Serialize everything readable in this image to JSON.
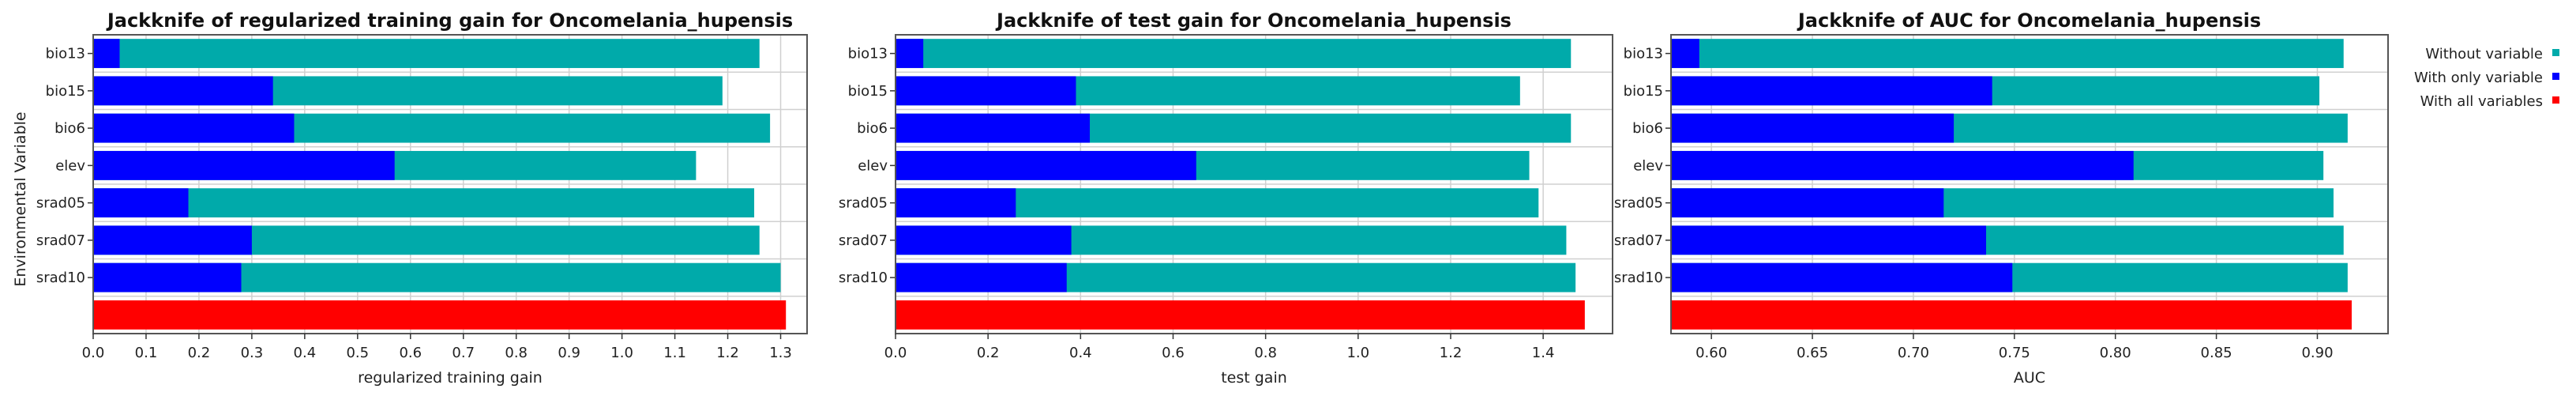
{
  "ylabel": "Environmental Variable",
  "colors": {
    "without": "#00aaaa",
    "only": "#0000ff",
    "all": "#ff0000",
    "grid": "#d0d0d0"
  },
  "legend": [
    {
      "label": "Without variable",
      "color": "#00aaaa"
    },
    {
      "label": "With only variable",
      "color": "#0000ff"
    },
    {
      "label": "With all variables",
      "color": "#ff0000"
    }
  ],
  "chart_data": [
    {
      "type": "bar",
      "orientation": "horizontal",
      "title": "Jackknife of regularized training gain for Oncomelania_hupensis",
      "xlabel": "regularized training gain",
      "ylabel": "Environmental Variable",
      "categories": [
        "bio13",
        "bio15",
        "bio6",
        "elev",
        "srad05",
        "srad07",
        "srad10"
      ],
      "series": [
        {
          "name": "Without variable",
          "values": [
            1.26,
            1.19,
            1.28,
            1.14,
            1.25,
            1.26,
            1.3
          ]
        },
        {
          "name": "With only variable",
          "values": [
            0.05,
            0.34,
            0.38,
            0.57,
            0.18,
            0.3,
            0.28
          ]
        }
      ],
      "all_variables": 1.31,
      "xlim": [
        0,
        1.35
      ],
      "xticks": [
        0.0,
        0.1,
        0.2,
        0.3,
        0.4,
        0.5,
        0.6,
        0.7,
        0.8,
        0.9,
        1.0,
        1.1,
        1.2,
        1.3
      ],
      "xtick_labels": [
        "0.0",
        "0.1",
        "0.2",
        "0.3",
        "0.4",
        "0.5",
        "0.6",
        "0.7",
        "0.8",
        "0.9",
        "1.0",
        "1.1",
        "1.2",
        "1.3"
      ],
      "grid": true
    },
    {
      "type": "bar",
      "orientation": "horizontal",
      "title": "Jackknife of test gain for Oncomelania_hupensis",
      "xlabel": "test gain",
      "ylabel": "",
      "categories": [
        "bio13",
        "bio15",
        "bio6",
        "elev",
        "srad05",
        "srad07",
        "srad10"
      ],
      "series": [
        {
          "name": "Without variable",
          "values": [
            1.46,
            1.35,
            1.46,
            1.37,
            1.39,
            1.45,
            1.47
          ]
        },
        {
          "name": "With only variable",
          "values": [
            0.06,
            0.39,
            0.42,
            0.65,
            0.26,
            0.38,
            0.37
          ]
        }
      ],
      "all_variables": 1.49,
      "xlim": [
        0,
        1.55
      ],
      "xticks": [
        0.0,
        0.2,
        0.4,
        0.6,
        0.8,
        1.0,
        1.2,
        1.4
      ],
      "xtick_labels": [
        "0.0",
        "0.2",
        "0.4",
        "0.6",
        "0.8",
        "1.0",
        "1.2",
        "1.4"
      ],
      "grid": true
    },
    {
      "type": "bar",
      "orientation": "horizontal",
      "title": "Jackknife of AUC for Oncomelania_hupensis",
      "xlabel": "AUC",
      "ylabel": "",
      "categories": [
        "bio13",
        "bio15",
        "bio6",
        "elev",
        "srad05",
        "srad07",
        "srad10"
      ],
      "series": [
        {
          "name": "Without variable",
          "values": [
            0.913,
            0.901,
            0.915,
            0.903,
            0.908,
            0.913,
            0.915
          ]
        },
        {
          "name": "With only variable",
          "values": [
            0.594,
            0.739,
            0.72,
            0.809,
            0.715,
            0.736,
            0.749
          ]
        }
      ],
      "all_variables": 0.917,
      "xlim": [
        0.58,
        0.935
      ],
      "xticks": [
        0.6,
        0.65,
        0.7,
        0.75,
        0.8,
        0.85,
        0.9
      ],
      "xtick_labels": [
        "0.60",
        "0.65",
        "0.70",
        "0.75",
        "0.80",
        "0.85",
        "0.90"
      ],
      "grid": true
    }
  ]
}
